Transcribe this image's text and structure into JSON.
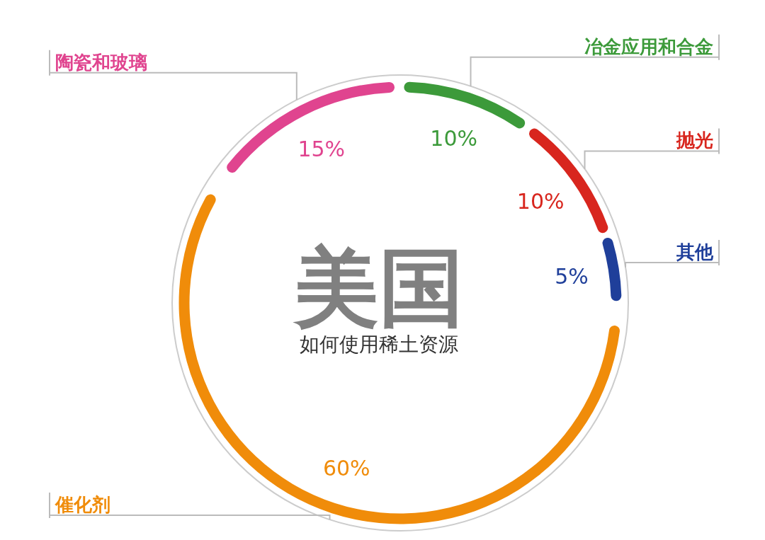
{
  "chart_data": {
    "type": "donut",
    "title": "美国",
    "subtitle": "如何使用稀土资源",
    "categories": [
      "冶金应用和合金",
      "抛光",
      "其他",
      "催化剂",
      "陶瓷和玻璃"
    ],
    "values": [
      10,
      10,
      5,
      60,
      15
    ],
    "colors": [
      "#3c9a3a",
      "#d8261e",
      "#1f3f9a",
      "#f08c0a",
      "#e0448f"
    ],
    "value_labels": [
      "10%",
      "10%",
      "5%",
      "60%",
      "15%"
    ]
  }
}
